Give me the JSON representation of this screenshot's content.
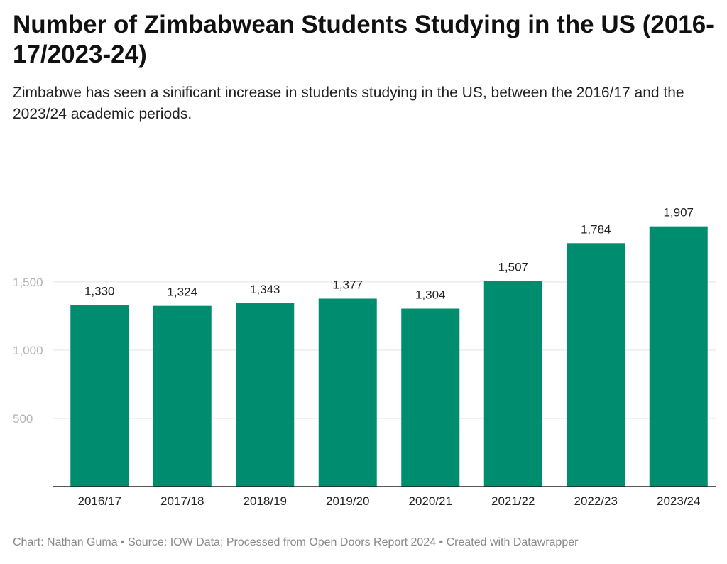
{
  "title": "Number of Zimbabwean Students Studying in the US (2016-17/2023-24)",
  "subtitle": "Zimbabwe has seen a sinificant increase in students studying in the US, between the 2016/17 and the 2023/24 academic periods.",
  "footer": "Chart: Nathan Guma • Source: IOW Data; Processed from Open Doors Report 2024 • Created with Datawrapper",
  "colors": {
    "bar": "#008d6f",
    "grid": "#e3e3e3",
    "axis": "#222222",
    "tick_label": "#b3b3b3",
    "label": "#222222"
  },
  "chart_data": {
    "type": "bar",
    "categories": [
      "2016/17",
      "2017/18",
      "2018/19",
      "2019/20",
      "2020/21",
      "2021/22",
      "2022/23",
      "2023/24"
    ],
    "values": [
      1330,
      1324,
      1343,
      1377,
      1304,
      1507,
      1784,
      1907
    ],
    "value_labels": [
      "1,330",
      "1,324",
      "1,343",
      "1,377",
      "1,304",
      "1,507",
      "1,784",
      "1,907"
    ],
    "y_ticks": [
      500,
      1000,
      1500
    ],
    "y_tick_labels": [
      "500",
      "1,000",
      "1,500"
    ],
    "ylim": [
      0,
      1907
    ],
    "grid": true,
    "xlabel": "",
    "ylabel": ""
  }
}
